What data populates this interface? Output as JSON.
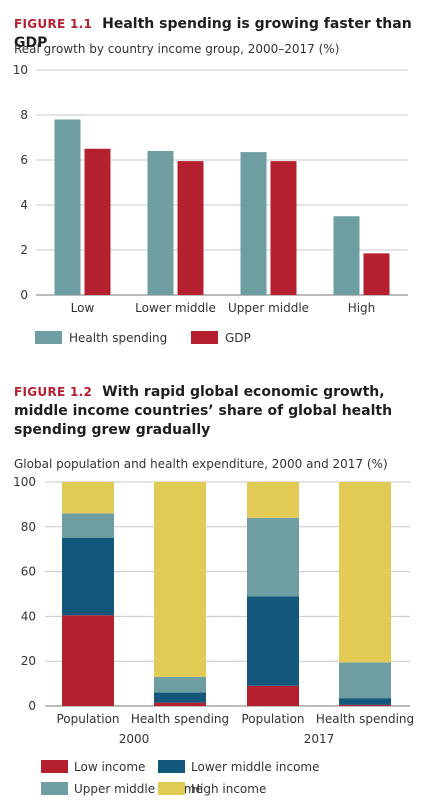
{
  "chart_data": [
    {
      "type": "bar",
      "figure_label": "FIGURE 1.1",
      "title": "Health spending is growing faster than GDP",
      "subtitle": "Real growth by country income group, 2000–2017 (%)",
      "categories": [
        "Low",
        "Lower middle",
        "Upper middle",
        "High"
      ],
      "series": [
        {
          "name": "Health spending",
          "values": [
            7.8,
            6.4,
            6.35,
            3.5
          ],
          "color": "#6e9ea1"
        },
        {
          "name": "GDP",
          "values": [
            6.5,
            5.95,
            5.95,
            1.85
          ],
          "color": "#b5202e"
        }
      ],
      "yticks": [
        0,
        2,
        4,
        6,
        8,
        10
      ],
      "ylim": [
        0,
        10
      ],
      "grid": true,
      "legend": "bottom-left"
    },
    {
      "type": "bar",
      "stacked": true,
      "figure_label": "FIGURE 1.2",
      "title": "With rapid global economic growth, middle income countries’ share of global health spending grew gradually",
      "subtitle": "Global population and health expenditure, 2000 and 2017 (%)",
      "categories": [
        "Population",
        "Health spending",
        "Population",
        "Health spending"
      ],
      "groups": [
        {
          "label": "2000"
        },
        {
          "label": "2017"
        }
      ],
      "series": [
        {
          "name": "Low income",
          "values": [
            40.5,
            1.5,
            9,
            0.5
          ],
          "color": "#b5202e"
        },
        {
          "name": "Lower middle income",
          "values": [
            34.5,
            4.5,
            40,
            3
          ],
          "color": "#13587c"
        },
        {
          "name": "Upper middle income",
          "values": [
            11,
            7,
            35,
            16
          ],
          "color": "#6e9ea1"
        },
        {
          "name": "High income",
          "values": [
            14,
            87,
            16,
            80.5
          ],
          "color": "#e2cb55"
        }
      ],
      "yticks": [
        0,
        20,
        40,
        60,
        80,
        100
      ],
      "ylim": [
        0,
        100
      ],
      "grid": true,
      "legend": "bottom"
    }
  ]
}
